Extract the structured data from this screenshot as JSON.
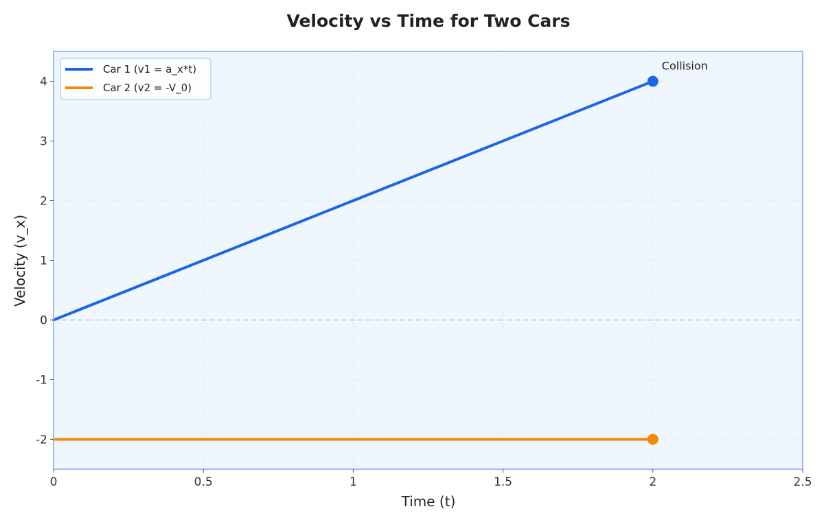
{
  "chart_data": {
    "type": "line",
    "title": "Velocity vs Time for Two Cars",
    "xlabel": "Time (t)",
    "ylabel": "Velocity (v_x)",
    "xlim": [
      0,
      2.5
    ],
    "ylim": [
      -2.5,
      4.5
    ],
    "xticks": [
      "0",
      "0.5",
      "1",
      "1.5",
      "2",
      "2.5"
    ],
    "xtick_values": [
      0,
      0.5,
      1,
      1.5,
      2,
      2.5
    ],
    "yticks": [
      "-2",
      "-1",
      "0",
      "1",
      "2",
      "3",
      "4"
    ],
    "ytick_values": [
      -2,
      -1,
      0,
      1,
      2,
      3,
      4
    ],
    "grid": true,
    "zero_line": true,
    "legend_position": "top-left",
    "series": [
      {
        "name": "Car 1 (v1 = a_x*t)",
        "color": "#1a66e6",
        "x": [
          0,
          2
        ],
        "y": [
          0,
          4
        ]
      },
      {
        "name": "Car 2 (v2 = -V_0)",
        "color": "#f5890a",
        "x": [
          0,
          2
        ],
        "y": [
          -2,
          -2
        ]
      }
    ],
    "markers": [
      {
        "x": 2,
        "y": 4,
        "color": "#1a66e6"
      },
      {
        "x": 2,
        "y": -2,
        "color": "#f5890a"
      }
    ],
    "annotations": [
      {
        "text": "Collision",
        "x": 2,
        "y": 4
      }
    ],
    "colors": {
      "plot_bg": "#f0f6fe",
      "frame": "#9dbbee",
      "grid": "#dde6f3",
      "zero_line": "#b9d1e8"
    }
  }
}
